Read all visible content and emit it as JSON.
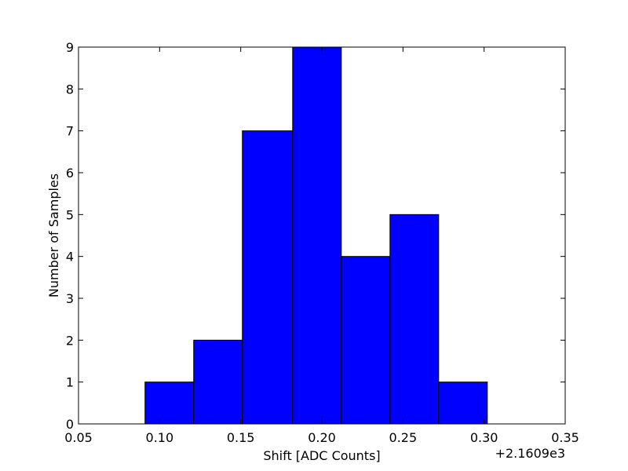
{
  "chart_data": {
    "type": "bar",
    "title": "",
    "xlabel": "Shift [ADC Counts]",
    "ylabel": "Number of Samples",
    "x_offset_label": "+2.1609e3",
    "xlim": [
      0.05,
      0.35
    ],
    "ylim": [
      0,
      9
    ],
    "grid": false,
    "legend": "none",
    "bar_color": "#0000ff",
    "edge_color": "#000000",
    "bins": [
      {
        "left": 0.091,
        "right": 0.121,
        "count": 1
      },
      {
        "left": 0.121,
        "right": 0.151,
        "count": 2
      },
      {
        "left": 0.151,
        "right": 0.182,
        "count": 7
      },
      {
        "left": 0.182,
        "right": 0.212,
        "count": 9
      },
      {
        "left": 0.212,
        "right": 0.242,
        "count": 4
      },
      {
        "left": 0.242,
        "right": 0.272,
        "count": 5
      },
      {
        "left": 0.272,
        "right": 0.302,
        "count": 1
      }
    ],
    "x_ticks": [
      {
        "value": 0.05,
        "label": "0.05"
      },
      {
        "value": 0.1,
        "label": "0.10"
      },
      {
        "value": 0.15,
        "label": "0.15"
      },
      {
        "value": 0.2,
        "label": "0.20"
      },
      {
        "value": 0.25,
        "label": "0.25"
      },
      {
        "value": 0.3,
        "label": "0.30"
      },
      {
        "value": 0.35,
        "label": "0.35"
      }
    ],
    "y_ticks": [
      {
        "value": 0,
        "label": "0"
      },
      {
        "value": 1,
        "label": "1"
      },
      {
        "value": 2,
        "label": "2"
      },
      {
        "value": 3,
        "label": "3"
      },
      {
        "value": 4,
        "label": "4"
      },
      {
        "value": 5,
        "label": "5"
      },
      {
        "value": 6,
        "label": "6"
      },
      {
        "value": 7,
        "label": "7"
      },
      {
        "value": 8,
        "label": "8"
      },
      {
        "value": 9,
        "label": "9"
      }
    ]
  }
}
